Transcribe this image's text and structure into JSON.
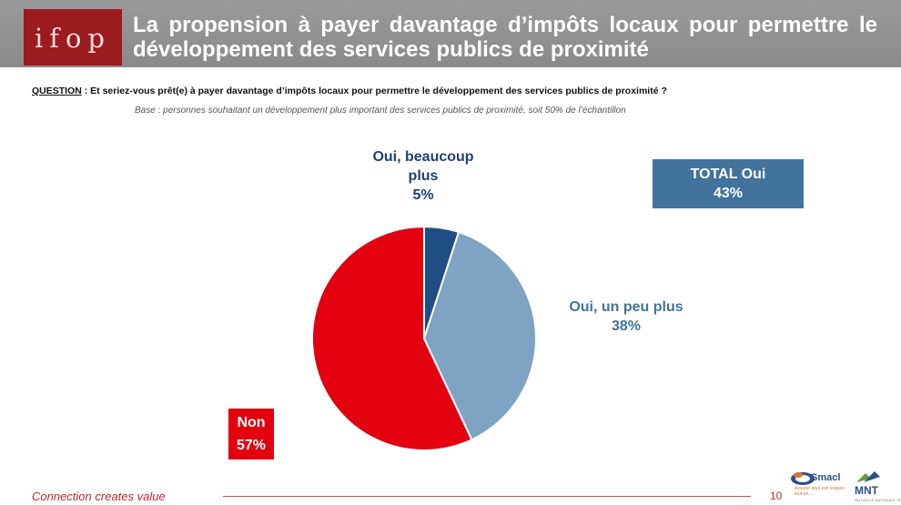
{
  "header": {
    "logo_text": "ifop",
    "title": "La propension à payer davantage d’impôts locaux pour permettre le développement des services publics de proximité"
  },
  "question": {
    "label": "QUESTION",
    "text": " : Et seriez-vous prêt(e) à payer davantage d’impôts locaux pour permettre le développement des services publics de proximité ?"
  },
  "base": "Base : personnes souhaitant un développement plus important des services publics de proximité, soit 50% de l’échantillon",
  "total_box": {
    "label": "TOTAL Oui",
    "value": "43%"
  },
  "chart_data": {
    "type": "pie",
    "slices": [
      {
        "name": "Oui, beaucoup plus",
        "label_line1": "Oui, beaucoup",
        "label_line2": "plus",
        "value": 5,
        "value_label": "5%",
        "color": "#1f4e84"
      },
      {
        "name": "Oui, un peu plus",
        "label_line1": "Oui, un peu plus",
        "value": 38,
        "value_label": "38%",
        "color": "#7fa3c3"
      },
      {
        "name": "Non",
        "label_line1": "Non",
        "value": 57,
        "value_label": "57%",
        "color": "#e3000f"
      }
    ],
    "start": "12 o'clock",
    "direction": "clockwise"
  },
  "footer": {
    "tagline": "Connection creates value",
    "page_number": "10",
    "partner_logo_1": {
      "name": "Smacl",
      "tagline": "Assurer tous vos risques tout en..."
    },
    "partner_logo_2": {
      "name": "MNT",
      "tagline": "MUTUELLE NATIONALE TERRITORIALE"
    }
  }
}
